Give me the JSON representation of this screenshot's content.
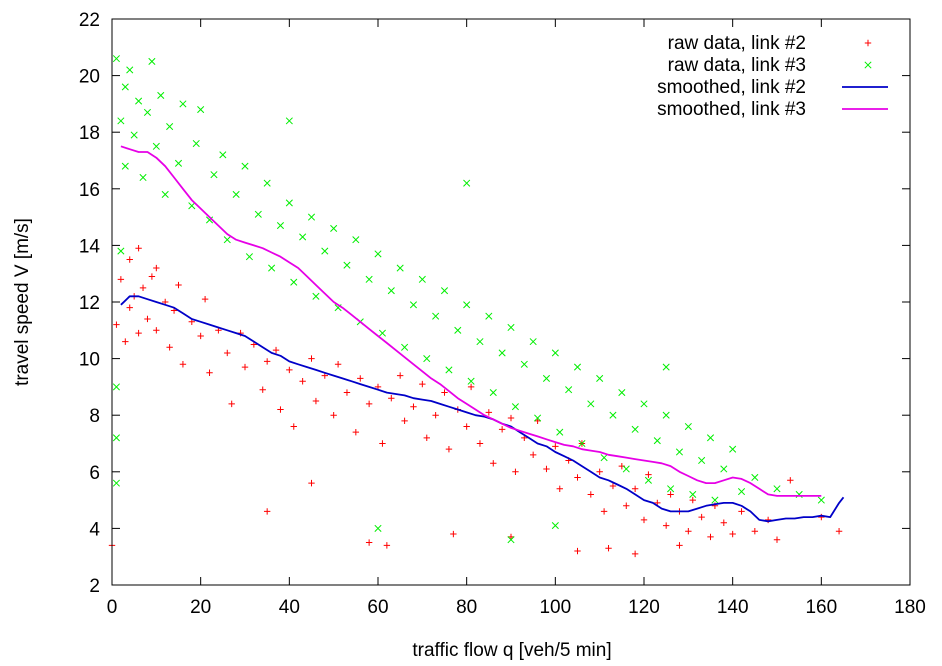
{
  "chart_data": {
    "type": "scatter",
    "xlabel": "traffic flow q [veh/5 min]",
    "ylabel": "travel speed V [m/s]",
    "xlim": [
      0,
      180
    ],
    "ylim": [
      2,
      22
    ],
    "x_ticks": [
      "0",
      "20",
      "40",
      "60",
      "80",
      "100",
      "120",
      "140",
      "160",
      "180"
    ],
    "y_ticks": [
      "2",
      "4",
      "6",
      "8",
      "10",
      "12",
      "14",
      "16",
      "18",
      "20",
      "22"
    ],
    "grid": false,
    "legend_position": "top-right",
    "series": [
      {
        "name": "raw data, link #2",
        "kind": "points",
        "marker": "plus",
        "color": "#ff0000",
        "points": [
          [
            1,
            11.2
          ],
          [
            2,
            12.8
          ],
          [
            3,
            10.6
          ],
          [
            4,
            13.5
          ],
          [
            4,
            11.8
          ],
          [
            5,
            12.2
          ],
          [
            6,
            10.9
          ],
          [
            6,
            13.9
          ],
          [
            7,
            12.5
          ],
          [
            8,
            11.4
          ],
          [
            9,
            12.9
          ],
          [
            10,
            11.0
          ],
          [
            10,
            13.2
          ],
          [
            12,
            12.0
          ],
          [
            13,
            10.4
          ],
          [
            14,
            11.7
          ],
          [
            15,
            12.6
          ],
          [
            16,
            9.8
          ],
          [
            18,
            11.3
          ],
          [
            20,
            10.8
          ],
          [
            21,
            12.1
          ],
          [
            22,
            9.5
          ],
          [
            24,
            11.0
          ],
          [
            26,
            10.2
          ],
          [
            27,
            8.4
          ],
          [
            29,
            10.9
          ],
          [
            30,
            9.7
          ],
          [
            32,
            10.5
          ],
          [
            34,
            8.9
          ],
          [
            35,
            9.9
          ],
          [
            37,
            10.3
          ],
          [
            38,
            8.2
          ],
          [
            40,
            9.6
          ],
          [
            41,
            7.6
          ],
          [
            43,
            9.2
          ],
          [
            45,
            10.0
          ],
          [
            46,
            8.5
          ],
          [
            48,
            9.4
          ],
          [
            50,
            8.0
          ],
          [
            51,
            9.8
          ],
          [
            53,
            8.8
          ],
          [
            55,
            7.4
          ],
          [
            56,
            9.3
          ],
          [
            58,
            8.4
          ],
          [
            60,
            9.0
          ],
          [
            61,
            7.0
          ],
          [
            63,
            8.6
          ],
          [
            65,
            9.4
          ],
          [
            66,
            7.8
          ],
          [
            68,
            8.3
          ],
          [
            70,
            9.1
          ],
          [
            71,
            7.2
          ],
          [
            73,
            8.0
          ],
          [
            75,
            8.8
          ],
          [
            76,
            6.8
          ],
          [
            78,
            8.2
          ],
          [
            80,
            7.6
          ],
          [
            81,
            9.0
          ],
          [
            83,
            7.0
          ],
          [
            85,
            8.1
          ],
          [
            86,
            6.3
          ],
          [
            88,
            7.5
          ],
          [
            90,
            7.9
          ],
          [
            91,
            6.0
          ],
          [
            93,
            7.2
          ],
          [
            95,
            6.6
          ],
          [
            96,
            7.8
          ],
          [
            98,
            6.1
          ],
          [
            100,
            6.9
          ],
          [
            101,
            5.4
          ],
          [
            103,
            6.4
          ],
          [
            105,
            5.8
          ],
          [
            106,
            7.0
          ],
          [
            108,
            5.2
          ],
          [
            110,
            6.0
          ],
          [
            111,
            4.6
          ],
          [
            113,
            5.5
          ],
          [
            115,
            6.2
          ],
          [
            116,
            4.8
          ],
          [
            118,
            5.4
          ],
          [
            120,
            4.3
          ],
          [
            121,
            5.9
          ],
          [
            123,
            4.9
          ],
          [
            125,
            4.1
          ],
          [
            126,
            5.2
          ],
          [
            128,
            4.6
          ],
          [
            130,
            3.9
          ],
          [
            131,
            5.0
          ],
          [
            133,
            4.4
          ],
          [
            135,
            3.7
          ],
          [
            136,
            4.8
          ],
          [
            138,
            4.2
          ],
          [
            140,
            3.8
          ],
          [
            142,
            4.6
          ],
          [
            145,
            3.9
          ],
          [
            148,
            4.3
          ],
          [
            150,
            3.6
          ],
          [
            153,
            5.7
          ],
          [
            160,
            4.4
          ],
          [
            164,
            3.9
          ],
          [
            35,
            4.6
          ],
          [
            45,
            5.6
          ],
          [
            58,
            3.5
          ],
          [
            62,
            3.4
          ],
          [
            77,
            3.8
          ],
          [
            90,
            3.7
          ],
          [
            105,
            3.2
          ],
          [
            112,
            3.3
          ],
          [
            118,
            3.1
          ],
          [
            128,
            3.4
          ],
          [
            0,
            3.4
          ]
        ]
      },
      {
        "name": "raw data, link #3",
        "kind": "points",
        "marker": "cross",
        "color": "#00ee00",
        "points": [
          [
            1,
            20.6
          ],
          [
            2,
            18.4
          ],
          [
            3,
            19.6
          ],
          [
            3,
            16.8
          ],
          [
            4,
            20.2
          ],
          [
            5,
            17.9
          ],
          [
            6,
            19.1
          ],
          [
            7,
            16.4
          ],
          [
            8,
            18.7
          ],
          [
            9,
            20.5
          ],
          [
            10,
            17.5
          ],
          [
            11,
            19.3
          ],
          [
            12,
            15.8
          ],
          [
            13,
            18.2
          ],
          [
            15,
            16.9
          ],
          [
            16,
            19.0
          ],
          [
            18,
            15.4
          ],
          [
            19,
            17.6
          ],
          [
            20,
            18.8
          ],
          [
            22,
            14.9
          ],
          [
            23,
            16.5
          ],
          [
            25,
            17.2
          ],
          [
            26,
            14.2
          ],
          [
            28,
            15.8
          ],
          [
            30,
            16.8
          ],
          [
            31,
            13.6
          ],
          [
            33,
            15.1
          ],
          [
            35,
            16.2
          ],
          [
            36,
            13.2
          ],
          [
            38,
            14.7
          ],
          [
            40,
            15.5
          ],
          [
            41,
            12.7
          ],
          [
            43,
            14.3
          ],
          [
            45,
            15.0
          ],
          [
            46,
            12.2
          ],
          [
            48,
            13.8
          ],
          [
            50,
            14.6
          ],
          [
            51,
            11.8
          ],
          [
            53,
            13.3
          ],
          [
            55,
            14.2
          ],
          [
            56,
            11.3
          ],
          [
            58,
            12.8
          ],
          [
            60,
            13.7
          ],
          [
            61,
            10.9
          ],
          [
            63,
            12.4
          ],
          [
            65,
            13.2
          ],
          [
            66,
            10.4
          ],
          [
            68,
            11.9
          ],
          [
            70,
            12.8
          ],
          [
            71,
            10.0
          ],
          [
            73,
            11.5
          ],
          [
            75,
            12.4
          ],
          [
            76,
            9.6
          ],
          [
            78,
            11.0
          ],
          [
            80,
            11.9
          ],
          [
            81,
            9.2
          ],
          [
            83,
            10.6
          ],
          [
            85,
            11.5
          ],
          [
            86,
            8.8
          ],
          [
            88,
            10.2
          ],
          [
            90,
            11.1
          ],
          [
            91,
            8.3
          ],
          [
            93,
            9.8
          ],
          [
            95,
            10.6
          ],
          [
            96,
            7.9
          ],
          [
            98,
            9.3
          ],
          [
            100,
            10.2
          ],
          [
            101,
            7.4
          ],
          [
            103,
            8.9
          ],
          [
            105,
            9.7
          ],
          [
            106,
            7.0
          ],
          [
            108,
            8.4
          ],
          [
            110,
            9.3
          ],
          [
            111,
            6.5
          ],
          [
            113,
            8.0
          ],
          [
            115,
            8.8
          ],
          [
            116,
            6.1
          ],
          [
            118,
            7.5
          ],
          [
            120,
            8.4
          ],
          [
            121,
            5.7
          ],
          [
            123,
            7.1
          ],
          [
            125,
            8.0
          ],
          [
            126,
            5.4
          ],
          [
            128,
            6.7
          ],
          [
            130,
            7.6
          ],
          [
            131,
            5.2
          ],
          [
            133,
            6.4
          ],
          [
            135,
            7.2
          ],
          [
            136,
            5.0
          ],
          [
            138,
            6.1
          ],
          [
            140,
            6.8
          ],
          [
            142,
            5.3
          ],
          [
            145,
            5.8
          ],
          [
            150,
            5.4
          ],
          [
            155,
            5.2
          ],
          [
            160,
            5.0
          ],
          [
            1,
            9.0
          ],
          [
            1,
            7.2
          ],
          [
            1,
            5.6
          ],
          [
            2,
            13.8
          ],
          [
            40,
            18.4
          ],
          [
            80,
            16.2
          ],
          [
            60,
            4.0
          ],
          [
            90,
            3.6
          ],
          [
            100,
            4.1
          ],
          [
            125,
            9.7
          ]
        ]
      },
      {
        "name": "smoothed, link #2",
        "kind": "line",
        "color": "#0000c8",
        "x": [
          2,
          4,
          6,
          8,
          10,
          12,
          14,
          16,
          18,
          20,
          22,
          24,
          26,
          28,
          30,
          32,
          34,
          36,
          38,
          40,
          42,
          44,
          46,
          48,
          50,
          52,
          54,
          56,
          58,
          60,
          62,
          64,
          66,
          68,
          70,
          72,
          74,
          76,
          78,
          80,
          82,
          84,
          86,
          88,
          90,
          92,
          94,
          96,
          98,
          100,
          102,
          104,
          106,
          108,
          110,
          112,
          114,
          116,
          118,
          120,
          122,
          124,
          126,
          128,
          130,
          132,
          134,
          136,
          138,
          140,
          142,
          144,
          146,
          148,
          150,
          152,
          154,
          156,
          158,
          160,
          162,
          164,
          165
        ],
        "y": [
          11.9,
          12.2,
          12.2,
          12.1,
          12.0,
          11.9,
          11.8,
          11.6,
          11.4,
          11.3,
          11.2,
          11.1,
          11.0,
          10.9,
          10.8,
          10.6,
          10.4,
          10.2,
          10.1,
          9.9,
          9.8,
          9.7,
          9.6,
          9.5,
          9.4,
          9.3,
          9.2,
          9.1,
          9.0,
          8.9,
          8.8,
          8.75,
          8.7,
          8.6,
          8.55,
          8.5,
          8.4,
          8.3,
          8.2,
          8.1,
          8.0,
          7.95,
          7.85,
          7.7,
          7.6,
          7.4,
          7.2,
          7.0,
          6.9,
          6.7,
          6.55,
          6.4,
          6.2,
          6.0,
          5.8,
          5.7,
          5.55,
          5.4,
          5.2,
          5.0,
          4.9,
          4.7,
          4.6,
          4.6,
          4.6,
          4.7,
          4.8,
          4.85,
          4.9,
          4.9,
          4.8,
          4.6,
          4.3,
          4.25,
          4.3,
          4.35,
          4.35,
          4.4,
          4.4,
          4.45,
          4.4,
          4.9,
          5.1
        ]
      },
      {
        "name": "smoothed, link #3",
        "kind": "line",
        "color": "#e600e6",
        "x": [
          2,
          4,
          6,
          8,
          10,
          12,
          14,
          16,
          18,
          20,
          22,
          24,
          26,
          28,
          30,
          32,
          34,
          36,
          38,
          40,
          42,
          44,
          46,
          48,
          50,
          52,
          54,
          56,
          58,
          60,
          62,
          64,
          66,
          68,
          70,
          72,
          74,
          76,
          78,
          80,
          82,
          84,
          86,
          88,
          90,
          92,
          94,
          96,
          98,
          100,
          102,
          104,
          106,
          108,
          110,
          112,
          114,
          116,
          118,
          120,
          122,
          124,
          126,
          128,
          130,
          132,
          134,
          136,
          138,
          140,
          142,
          144,
          146,
          148,
          150,
          155,
          160
        ],
        "y": [
          17.5,
          17.4,
          17.3,
          17.3,
          17.1,
          16.8,
          16.4,
          16.0,
          15.6,
          15.3,
          15.0,
          14.7,
          14.4,
          14.2,
          14.1,
          14.0,
          13.9,
          13.75,
          13.6,
          13.4,
          13.2,
          12.9,
          12.6,
          12.3,
          12.0,
          11.8,
          11.55,
          11.3,
          11.05,
          10.8,
          10.55,
          10.3,
          10.05,
          9.8,
          9.55,
          9.3,
          9.1,
          8.85,
          8.6,
          8.4,
          8.2,
          8.0,
          7.85,
          7.7,
          7.55,
          7.45,
          7.35,
          7.25,
          7.15,
          7.05,
          6.95,
          6.9,
          6.8,
          6.75,
          6.7,
          6.6,
          6.55,
          6.5,
          6.45,
          6.4,
          6.35,
          6.3,
          6.2,
          6.0,
          5.85,
          5.7,
          5.6,
          5.6,
          5.7,
          5.8,
          5.75,
          5.6,
          5.4,
          5.2,
          5.15,
          5.15,
          5.15
        ]
      }
    ]
  }
}
